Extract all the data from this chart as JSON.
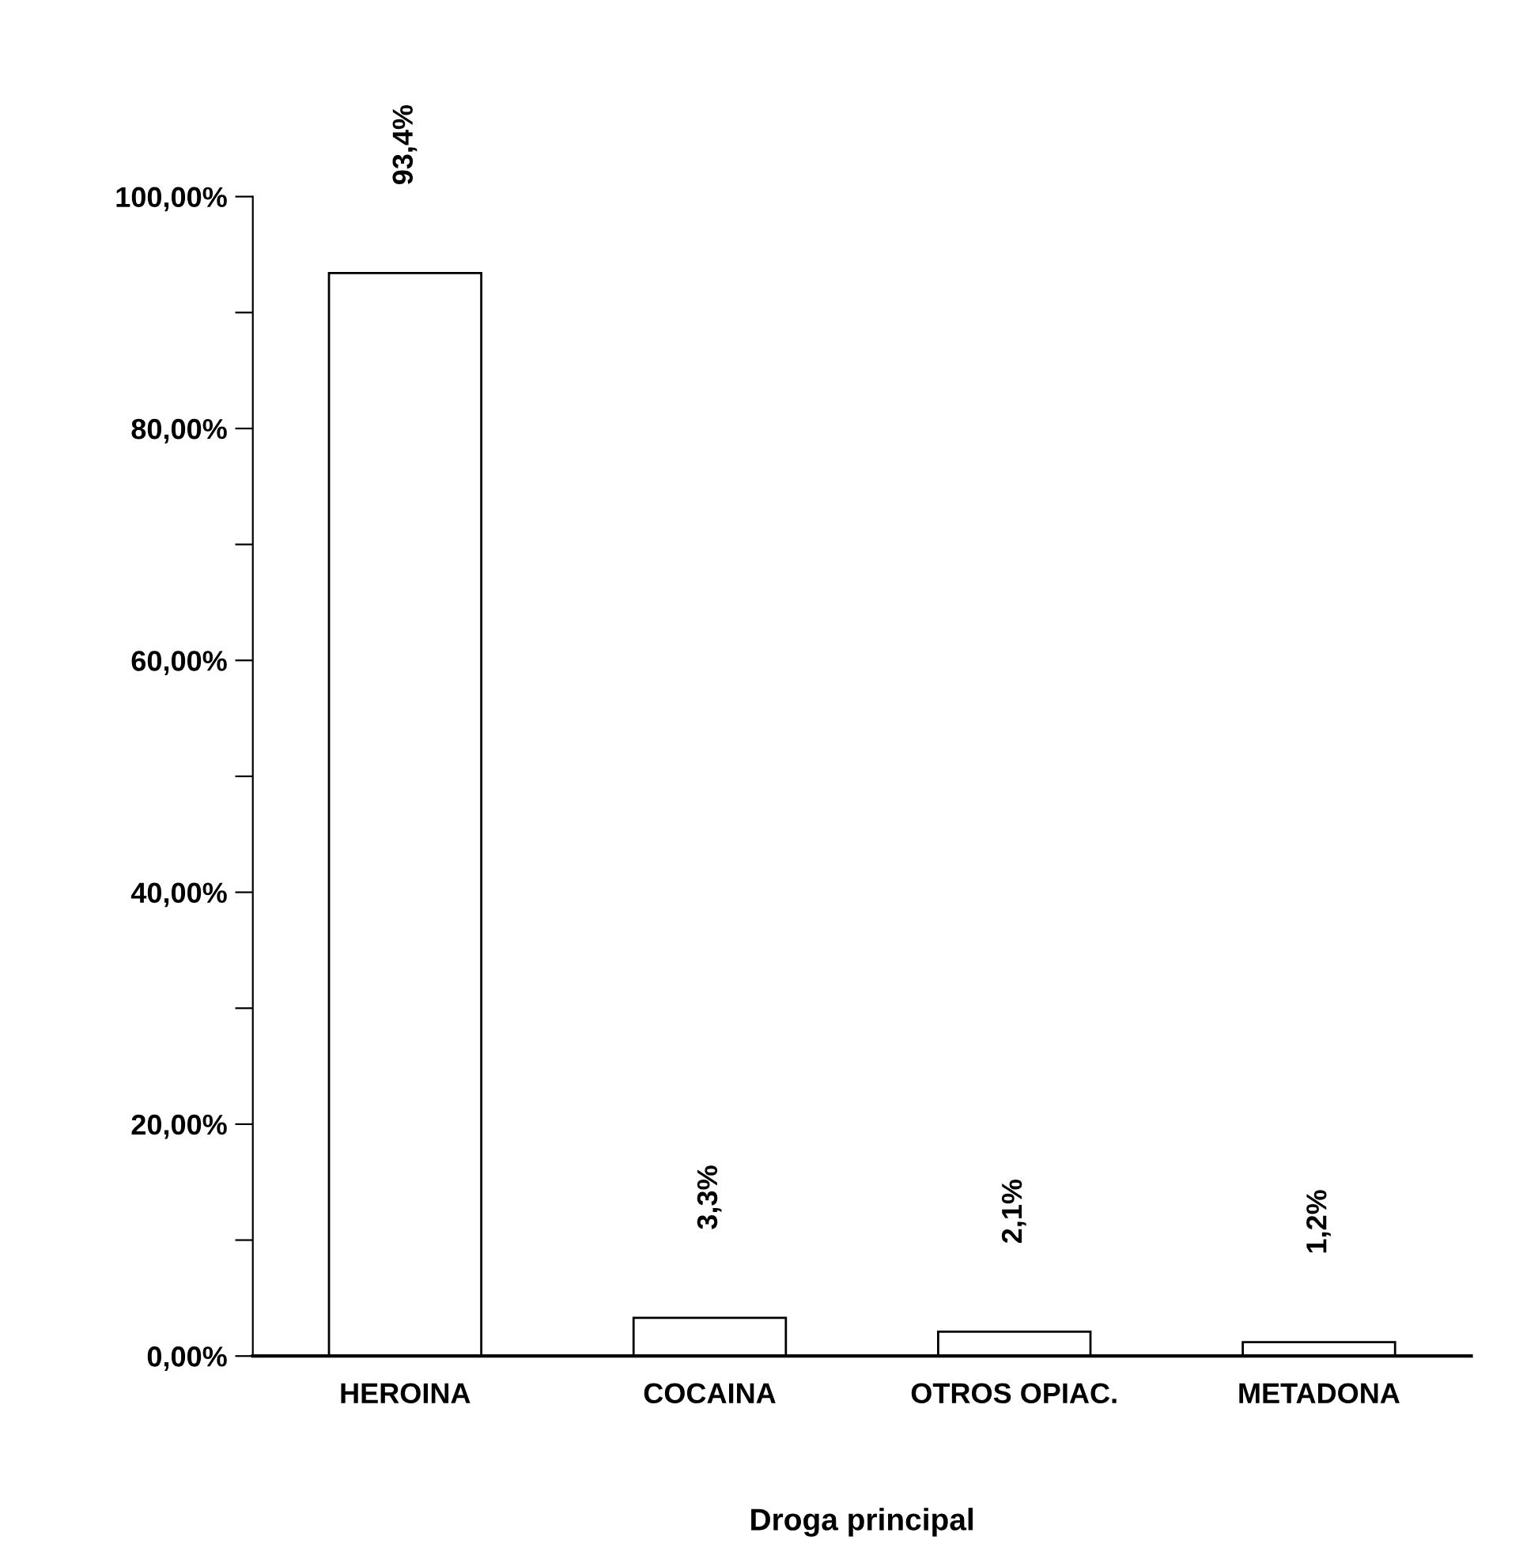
{
  "chart_data": {
    "type": "bar",
    "xlabel": "Droga principal",
    "categories": [
      "HEROINA",
      "COCAINA",
      "OTROS OPIAC.",
      "METADONA"
    ],
    "values": [
      93.4,
      3.3,
      2.1,
      1.2
    ],
    "value_labels": [
      "93,4%",
      "3,3%",
      "2,1%",
      "1,2%"
    ],
    "color": "#ffffff",
    "ylim": [
      0,
      100
    ],
    "yticks": [
      {
        "value": 0,
        "label": "0,00%"
      },
      {
        "value": 10,
        "label": null
      },
      {
        "value": 20,
        "label": "20,00%"
      },
      {
        "value": 30,
        "label": null
      },
      {
        "value": 40,
        "label": "40,00%"
      },
      {
        "value": 50,
        "label": null
      },
      {
        "value": 60,
        "label": "60,00%"
      },
      {
        "value": 70,
        "label": null
      },
      {
        "value": 80,
        "label": "80,00%"
      },
      {
        "value": 90,
        "label": null
      },
      {
        "value": 100,
        "label": "100,00%"
      }
    ],
    "grid": false
  }
}
